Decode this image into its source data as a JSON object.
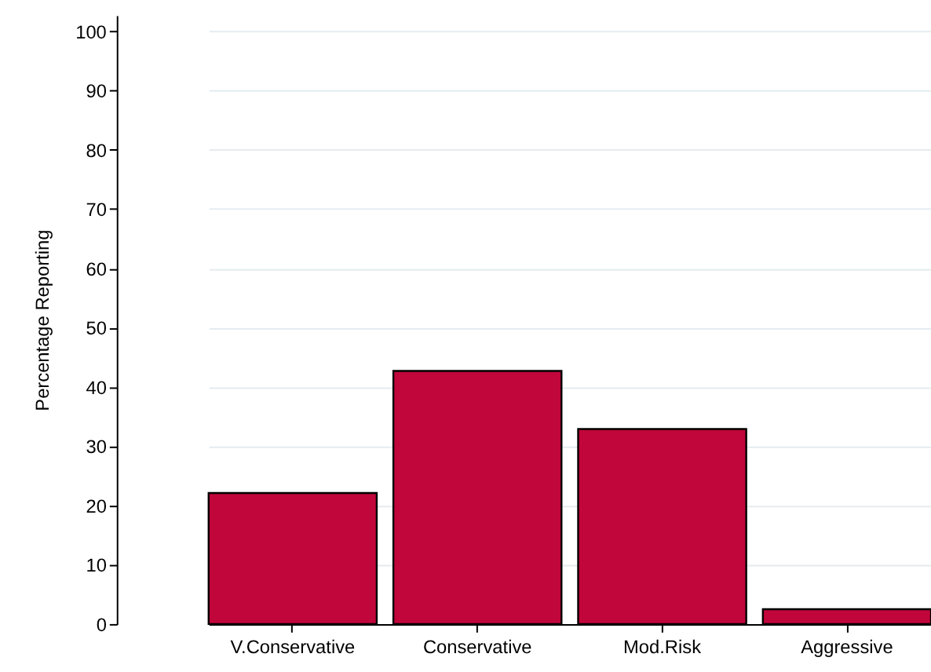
{
  "chart_data": {
    "type": "bar",
    "ylabel": "Percentage Reporting",
    "categories": [
      "V.Conservative",
      "Conservative",
      "Mod.Risk",
      "Aggressive"
    ],
    "values": [
      22.1,
      42.7,
      32.9,
      2.5
    ],
    "color": "#c0063a",
    "ylim": [
      0,
      102.7
    ],
    "yticks": [
      0,
      10,
      20,
      30,
      40,
      50,
      60,
      70,
      80,
      90,
      100
    ],
    "grid": "y"
  }
}
